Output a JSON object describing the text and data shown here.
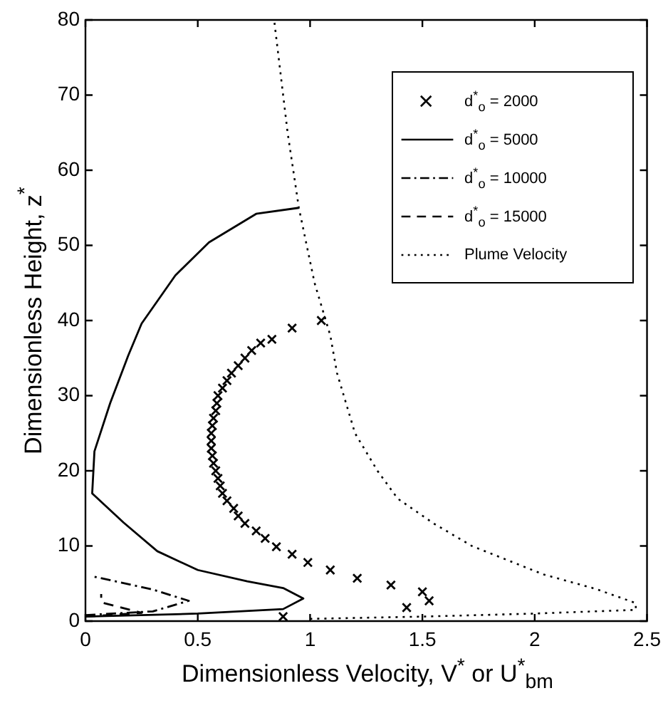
{
  "chart_data": {
    "type": "line",
    "xlabel": "Dimensionless Velocity, V$^{*}$ or U$^{*}$$_{bm}$",
    "ylabel": "Dimensionless Height, z$^{*}$",
    "xlim": [
      0,
      2.5
    ],
    "ylim": [
      0,
      80
    ],
    "xticks": [
      0,
      0.5,
      1,
      1.5,
      2,
      2.5
    ],
    "yticks": [
      0,
      10,
      20,
      30,
      40,
      50,
      60,
      70,
      80
    ],
    "grid": false,
    "legend": "top right",
    "series": [
      {
        "name": "d$^{*}$$_{o}$ =  2000",
        "type": "scatter",
        "marker": "cross",
        "color": "#000000",
        "x": [
          0.88,
          1.43,
          1.53,
          1.5,
          1.36,
          1.21,
          1.09,
          0.99,
          0.92,
          0.85,
          0.8,
          0.76,
          0.71,
          0.68,
          0.66,
          0.63,
          0.61,
          0.6,
          0.59,
          0.58,
          0.57,
          0.565,
          0.56,
          0.56,
          0.56,
          0.565,
          0.57,
          0.58,
          0.585,
          0.59,
          0.61,
          0.63,
          0.65,
          0.68,
          0.71,
          0.74,
          0.78,
          0.83,
          0.92,
          1.05
        ],
        "values": [
          0.6,
          1.8,
          2.7,
          3.9,
          4.8,
          5.7,
          6.8,
          7.8,
          8.9,
          9.9,
          11,
          12,
          13,
          14,
          15,
          16,
          17,
          18,
          19,
          20,
          21,
          22,
          23,
          24,
          25,
          26,
          27,
          28,
          29,
          30,
          31,
          32,
          33,
          34,
          35,
          36,
          37,
          37.5,
          39,
          40
        ]
      },
      {
        "name": "d$^{*}$$_{o}$ =  5000",
        "type": "line",
        "marker": "none",
        "line_style": "solid",
        "color": "#000000",
        "x": [
          0,
          0.5,
          0.88,
          0.97,
          0.88,
          0.72,
          0.5,
          0.32,
          0.17,
          0.03,
          0.04,
          0.11,
          0.19,
          0.25,
          0.4,
          0.55,
          0.76,
          0.95
        ],
        "values": [
          0.6,
          1,
          1.6,
          3,
          4.4,
          5.3,
          6.8,
          9.3,
          13.1,
          17,
          22.6,
          29,
          35.3,
          39.6,
          46,
          50.4,
          54.2,
          55
        ]
      },
      {
        "name": "d$^{*}$$_{o}$ = 10000",
        "type": "line",
        "marker": "none",
        "line_style": "dashdot",
        "color": "#000000",
        "x": [
          0,
          0.3,
          0.46,
          0.3,
          0.04
        ],
        "values": [
          0.8,
          1.3,
          2.7,
          4.2,
          5.9
        ]
      },
      {
        "name": "d$^{*}$$_{o}$ = 15000",
        "type": "line",
        "marker": "none",
        "line_style": "dashed",
        "color": "#000000",
        "x": [
          0,
          0.25,
          0.07,
          0.07
        ],
        "values": [
          0.6,
          1.1,
          2.5,
          3.6
        ]
      },
      {
        "name": "Plume Velocity",
        "type": "line",
        "marker": "none",
        "line_style": "dotted",
        "color": "#000000",
        "x": [
          1,
          1.5,
          2,
          2.45,
          2.45,
          2.27,
          2.04,
          1.72,
          1.55,
          1.39,
          1.3,
          1.2,
          1.12,
          1.09,
          1.02,
          0.95,
          0.9,
          0.84
        ],
        "values": [
          0.3,
          0.6,
          1,
          1.5,
          2.4,
          4.3,
          6.2,
          10,
          13,
          16.3,
          20,
          25,
          33,
          38,
          45,
          55,
          65,
          80
        ]
      }
    ]
  }
}
